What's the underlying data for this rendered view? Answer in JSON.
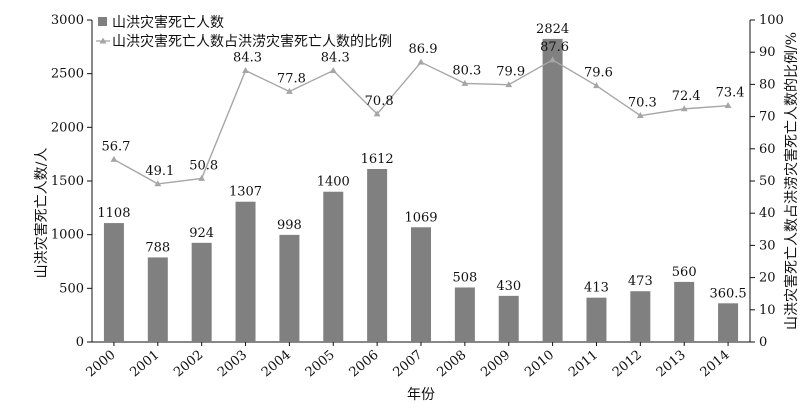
{
  "chart_data": {
    "type": "bar+line",
    "categories": [
      "2000",
      "2001",
      "2002",
      "2003",
      "2004",
      "2005",
      "2006",
      "2007",
      "2008",
      "2009",
      "2010",
      "2011",
      "2012",
      "2013",
      "2014"
    ],
    "series": [
      {
        "name": "山洪灾害死亡人数",
        "type": "bar",
        "axis": "left",
        "values": [
          1108,
          788,
          924,
          1307,
          998,
          1400,
          1612,
          1069,
          508,
          430,
          2824,
          413,
          473,
          560,
          360.5
        ],
        "labels": [
          "1108",
          "788",
          "924",
          "1307",
          "998",
          "1400",
          "1612",
          "1069",
          "508",
          "430",
          "2824",
          "413",
          "473",
          "560",
          "360.5"
        ],
        "color": "#808080"
      },
      {
        "name": "山洪灾害死亡人数占洪涝灾害死亡人数的比例",
        "type": "line",
        "axis": "right",
        "values": [
          56.7,
          49.1,
          50.8,
          84.3,
          77.8,
          84.3,
          70.8,
          86.9,
          80.3,
          79.9,
          87.6,
          79.6,
          70.3,
          72.4,
          73.4
        ],
        "labels": [
          "56.7",
          "49.1",
          "50.8",
          "84.3",
          "77.8",
          "84.3",
          "70.8",
          "86.9",
          "80.3",
          "79.9",
          "87.6",
          "79.6",
          "70.3",
          "72.4",
          "73.4"
        ],
        "color": "#a6a6a6"
      }
    ],
    "xlabel": "年份",
    "ylabel_left": "山洪灾害死亡人数/人",
    "ylabel_right": "山洪灾害死亡人数占洪涝灾害死亡人数的比例/%",
    "ylim_left": [
      0,
      3000
    ],
    "ylim_right": [
      0,
      100
    ],
    "yticks_left": [
      "0",
      "500",
      "1000",
      "1500",
      "2000",
      "2500",
      "3000"
    ],
    "yticks_right": [
      "0",
      "10",
      "20",
      "30",
      "40",
      "50",
      "60",
      "70",
      "80",
      "90",
      "100"
    ],
    "legend_position": "top-left",
    "grid": false
  }
}
